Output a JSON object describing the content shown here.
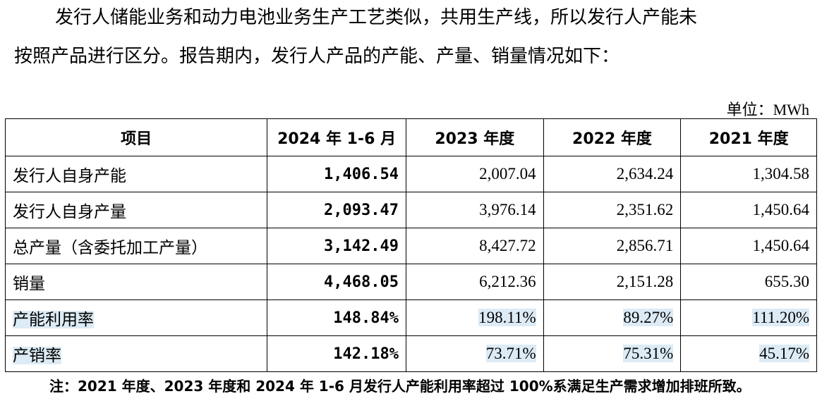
{
  "paragraph": {
    "lines": [
      "发行人储能业务和动力电池业务生产工艺类似，共用生产线，所以发行人产能未",
      "按照产品进行区分。报告期内，发行人产品的产能、产量、销量情况如下："
    ]
  },
  "unit": "单位：MWh",
  "table": {
    "header": [
      "项目",
      "2024 年 1-6 月",
      "2023 年度",
      "2022 年度",
      "2021 年度"
    ],
    "rows": [
      [
        "发行人自身产能",
        "1,406.54",
        "2,007.04",
        "2,634.24",
        "1,304.58"
      ],
      [
        "发行人自身产量",
        "2,093.47",
        "3,976.14",
        "2,351.62",
        "1,450.64"
      ],
      [
        "总产量（含委托加工产量）",
        "3,142.49",
        "8,427.72",
        "2,856.71",
        "1,450.64"
      ],
      [
        "销量",
        "4,468.05",
        "6,212.36",
        "2,151.28",
        "655.30"
      ],
      [
        "产能利用率",
        "148.84%",
        "198.11%",
        "89.27%",
        "111.20%"
      ],
      [
        "产销率",
        "142.18%",
        "73.71%",
        "75.31%",
        "45.17%"
      ]
    ]
  },
  "note": "注：2021 年度、2023 年度和 2024 年 1-6 月发行人产能利用率超过 100%系满足生产需求增加排班所致。"
}
